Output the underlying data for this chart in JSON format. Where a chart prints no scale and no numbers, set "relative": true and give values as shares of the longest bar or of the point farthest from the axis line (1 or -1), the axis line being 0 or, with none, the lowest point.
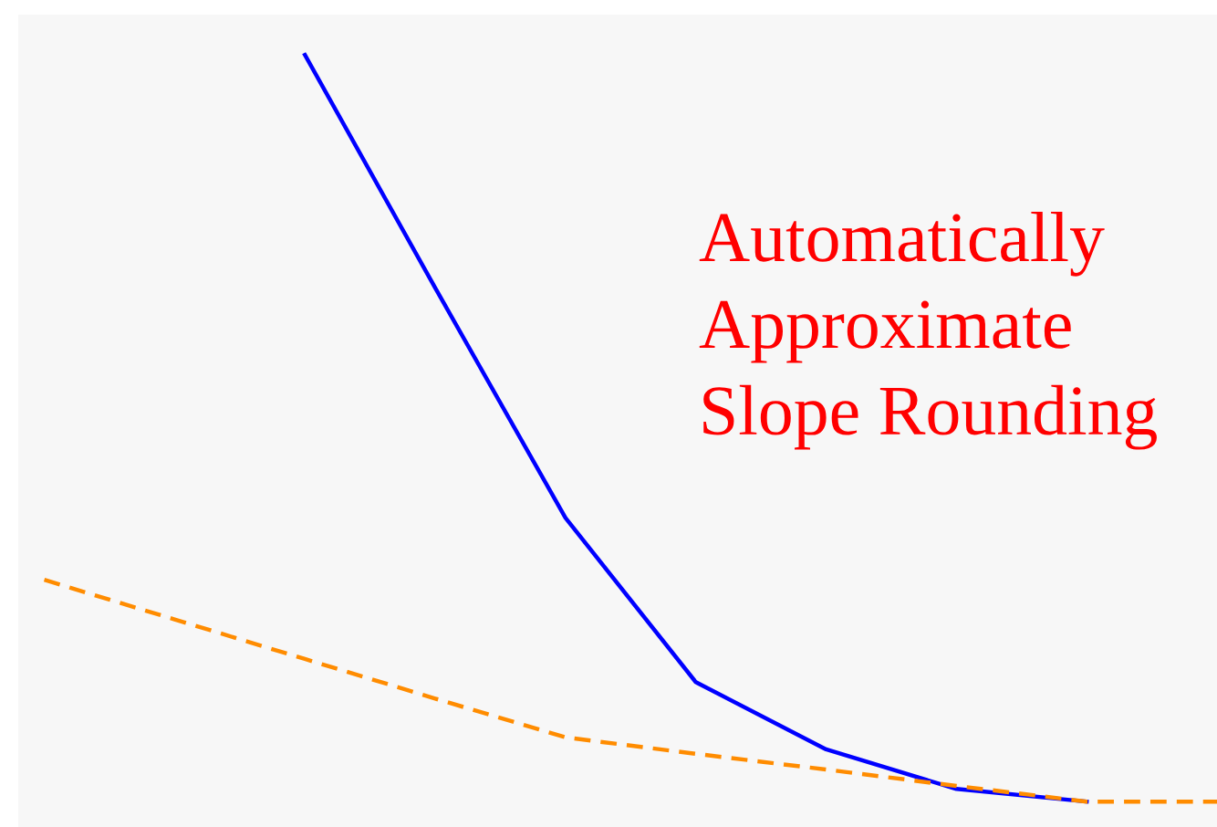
{
  "chart_data": {
    "type": "line",
    "relative": true,
    "categories": [
      null,
      null,
      null,
      null,
      null,
      null,
      null,
      null,
      null,
      null
    ],
    "tick_labels": false,
    "annotations": [
      "Automatically\nApproximate\nSlope Rounding"
    ],
    "series": [
      {
        "color": "#0000ff",
        "line_style": "solid",
        "values": [
          null,
          null,
          1,
          0.688,
          0.38,
          0.16,
          0.07,
          0.017,
          0,
          null
        ]
      },
      {
        "color": "#ff8c00",
        "line_style": "dashed",
        "values": [
          0.297,
          0.244,
          0.191,
          0.138,
          0.086,
          0.064,
          0.043,
          0.021,
          0,
          0
        ]
      }
    ]
  }
}
